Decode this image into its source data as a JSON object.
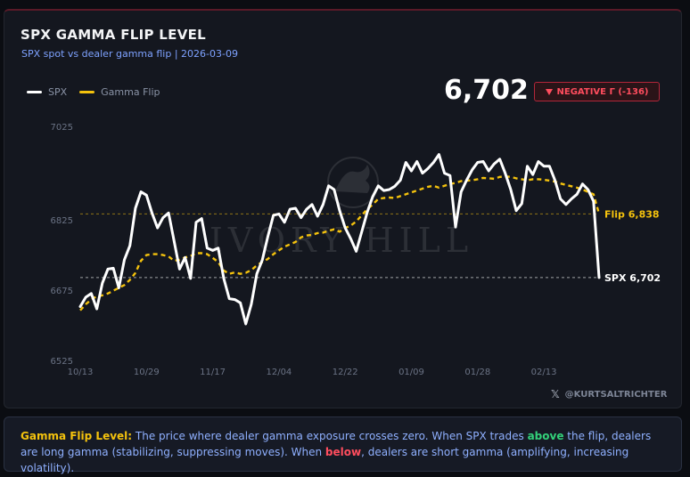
{
  "header": {
    "title": "SPX GAMMA FLIP LEVEL",
    "subtitle": "SPX spot vs dealer gamma flip | 2026-03-09",
    "current_value": "6,702",
    "badge": "NEGATIVE Γ (-136)",
    "badge_color": "#ff4d5e"
  },
  "credit": {
    "icon": "x-logo-icon",
    "handle": "@KURTSALTRICHTER"
  },
  "chart_data": {
    "type": "line",
    "ylim": [
      6525,
      7025
    ],
    "yticks": [
      7025,
      6825,
      6675,
      6525
    ],
    "xticks": [
      {
        "label": "10/13",
        "x": 0
      },
      {
        "label": "10/29",
        "x": 12
      },
      {
        "label": "11/17",
        "x": 24
      },
      {
        "label": "12/04",
        "x": 36
      },
      {
        "label": "12/22",
        "x": 48
      },
      {
        "label": "01/09",
        "x": 60
      },
      {
        "label": "01/28",
        "x": 72
      },
      {
        "label": "02/13",
        "x": 84
      }
    ],
    "x": [
      0,
      1,
      2,
      3,
      4,
      5,
      6,
      7,
      8,
      9,
      10,
      11,
      12,
      13,
      14,
      15,
      16,
      17,
      18,
      19,
      20,
      21,
      22,
      23,
      24,
      25,
      26,
      27,
      28,
      29,
      30,
      31,
      32,
      33,
      34,
      35,
      36,
      37,
      38,
      39,
      40,
      41,
      42,
      43,
      44,
      45,
      46,
      47,
      48,
      49,
      50,
      51,
      52,
      53,
      54,
      55,
      56,
      57,
      58,
      59,
      60,
      61,
      62,
      63,
      64,
      65,
      66,
      67,
      68,
      69,
      70,
      71,
      72,
      73,
      74,
      75,
      76,
      77,
      78,
      79,
      80,
      81,
      82,
      83,
      84,
      85,
      86,
      87,
      88,
      89,
      90,
      91,
      92,
      93,
      94
    ],
    "series": [
      {
        "name": "SPX",
        "color": "#ffffff",
        "values": [
          6640,
          6660,
          6668,
          6635,
          6690,
          6720,
          6722,
          6680,
          6740,
          6770,
          6850,
          6885,
          6878,
          6840,
          6808,
          6830,
          6840,
          6780,
          6720,
          6745,
          6700,
          6820,
          6828,
          6765,
          6760,
          6765,
          6700,
          6657,
          6655,
          6648,
          6603,
          6645,
          6710,
          6740,
          6790,
          6835,
          6838,
          6820,
          6848,
          6850,
          6830,
          6848,
          6858,
          6833,
          6858,
          6898,
          6890,
          6845,
          6808,
          6785,
          6758,
          6800,
          6842,
          6875,
          6898,
          6888,
          6890,
          6897,
          6910,
          6948,
          6930,
          6950,
          6925,
          6935,
          6948,
          6965,
          6925,
          6920,
          6810,
          6885,
          6910,
          6932,
          6948,
          6950,
          6930,
          6945,
          6955,
          6925,
          6890,
          6845,
          6860,
          6940,
          6922,
          6950,
          6940,
          6940,
          6910,
          6870,
          6858,
          6870,
          6880,
          6902,
          6890,
          6865,
          6702
        ]
      },
      {
        "name": "Gamma Flip",
        "color": "#f4c20d",
        "values": [
          6632,
          6645,
          6655,
          6662,
          6664,
          6668,
          6674,
          6680,
          6686,
          6697,
          6712,
          6738,
          6750,
          6752,
          6752,
          6750,
          6747,
          6738,
          6740,
          6745,
          6748,
          6754,
          6754,
          6752,
          6744,
          6735,
          6717,
          6710,
          6713,
          6710,
          6712,
          6718,
          6728,
          6735,
          6742,
          6752,
          6760,
          6768,
          6773,
          6778,
          6788,
          6792,
          6793,
          6797,
          6798,
          6802,
          6805,
          6800,
          6808,
          6813,
          6822,
          6835,
          6848,
          6858,
          6870,
          6872,
          6873,
          6872,
          6876,
          6880,
          6884,
          6888,
          6892,
          6896,
          6898,
          6894,
          6898,
          6902,
          6904,
          6908,
          6909,
          6910,
          6912,
          6915,
          6914,
          6913,
          6917,
          6918,
          6917,
          6914,
          6912,
          6910,
          6912,
          6912,
          6911,
          6909,
          6907,
          6903,
          6900,
          6897,
          6894,
          6890,
          6885,
          6880,
          6838
        ]
      }
    ],
    "reference_lines": [
      {
        "name": "Flip",
        "value": 6838,
        "label": "Flip 6,838",
        "color": "#f4c20d"
      },
      {
        "name": "SPX",
        "value": 6702,
        "label": "SPX 6,702",
        "color": "#ffffff"
      }
    ],
    "watermark": "IVORY HILL",
    "legend_position": "top-left",
    "grid": false
  },
  "footer": {
    "term": "Gamma Flip Level:",
    "part1": " The price where dealer gamma exposure crosses zero. When SPX trades ",
    "above": "above",
    "part2": " the flip, dealers are long gamma (stabilizing, suppressing moves). When ",
    "below": "below",
    "part3": ", dealers are short gamma (amplifying, increasing volatility)."
  }
}
